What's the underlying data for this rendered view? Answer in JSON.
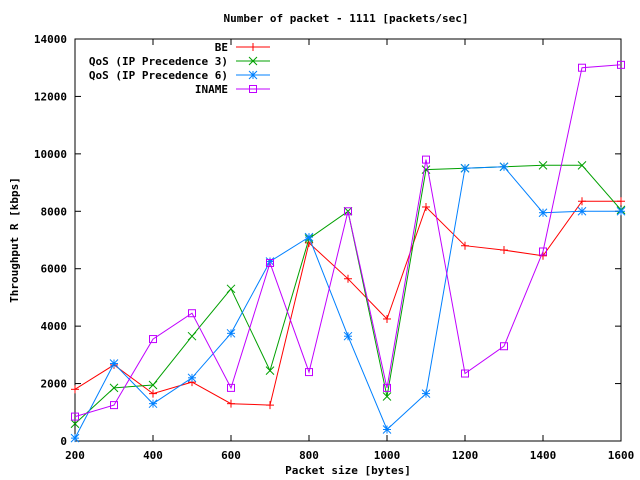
{
  "chart_data": {
    "type": "line",
    "title": "Number of packet - 1111 [packets/sec]",
    "xlabel": "Packet size [bytes]",
    "ylabel": "Throughput R [kbps]",
    "xlim": [
      200,
      1600
    ],
    "ylim": [
      0,
      14000
    ],
    "xticks": [
      200,
      400,
      600,
      800,
      1000,
      1200,
      1400,
      1600
    ],
    "yticks": [
      0,
      2000,
      4000,
      6000,
      8000,
      10000,
      12000,
      14000
    ],
    "grid": false,
    "legend_position": "top-left",
    "series": [
      {
        "name": "BE",
        "color": "#ff0000",
        "marker": "plus",
        "x": [
          200,
          300,
          400,
          500,
          600,
          700,
          800,
          900,
          1000,
          1100,
          1200,
          1300,
          1400,
          1500,
          1600
        ],
        "y": [
          1800,
          2650,
          1650,
          2050,
          1300,
          1250,
          6900,
          5650,
          4250,
          8150,
          6800,
          6650,
          6450,
          8350,
          8350
        ]
      },
      {
        "name": "QoS (IP Precedence 3)",
        "color": "#00a000",
        "marker": "cross",
        "x": [
          200,
          300,
          400,
          500,
          600,
          700,
          800,
          900,
          1000,
          1100,
          1200,
          1300,
          1400,
          1500,
          1600
        ],
        "y": [
          600,
          1850,
          1950,
          3650,
          5300,
          2450,
          7050,
          8000,
          1550,
          9450,
          9500,
          9550,
          9600,
          9600,
          8050
        ]
      },
      {
        "name": "QoS (IP Precedence 6)",
        "color": "#0080ff",
        "marker": "star",
        "x": [
          200,
          300,
          400,
          500,
          600,
          700,
          800,
          900,
          1000,
          1100,
          1200,
          1300,
          1400,
          1500,
          1600
        ],
        "y": [
          100,
          2700,
          1300,
          2200,
          3750,
          6250,
          7100,
          3650,
          400,
          1650,
          9500,
          9550,
          7950,
          8000,
          8000
        ]
      },
      {
        "name": "INAME",
        "color": "#c000ff",
        "marker": "square",
        "x": [
          200,
          300,
          400,
          500,
          600,
          700,
          800,
          900,
          1000,
          1100,
          1200,
          1300,
          1400,
          1500,
          1600
        ],
        "y": [
          850,
          1250,
          3550,
          4450,
          1850,
          6200,
          2400,
          8000,
          1850,
          9800,
          2350,
          3300,
          6600,
          13000,
          13100
        ]
      }
    ]
  }
}
